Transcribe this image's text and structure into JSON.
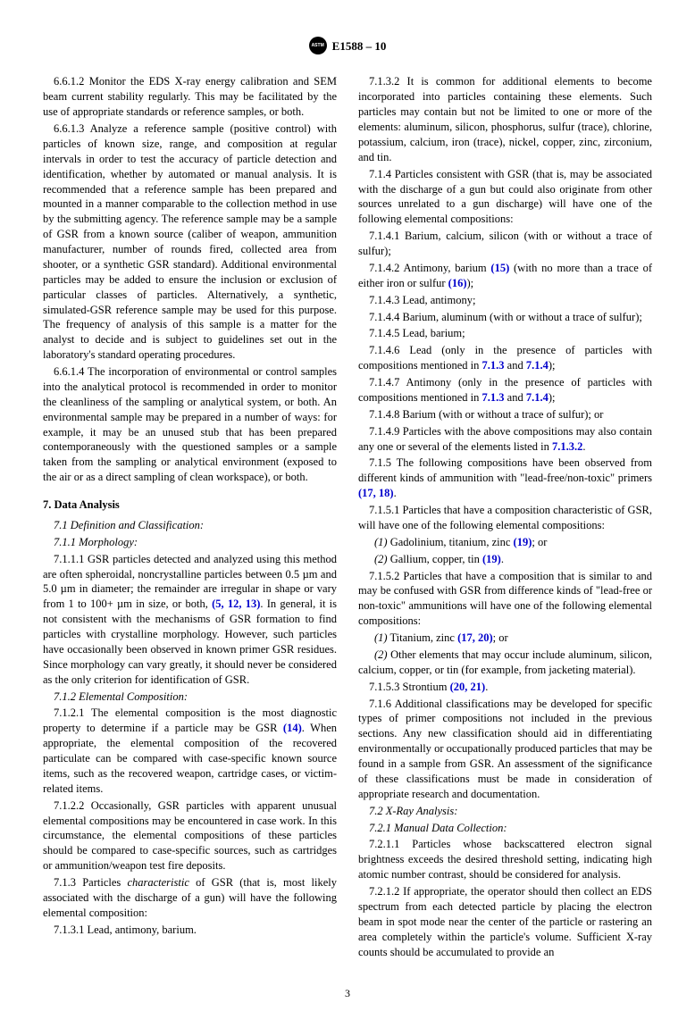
{
  "header": {
    "standard": "E1588 – 10",
    "logoText": "ASTM"
  },
  "pageNumber": "3",
  "col1": {
    "p6_6_1_2": "6.6.1.2 Monitor the EDS X-ray energy calibration and SEM beam current stability regularly. This may be facilitated by the use of appropriate standards or reference samples, or both.",
    "p6_6_1_3": "6.6.1.3 Analyze a reference sample (positive control) with particles of known size, range, and composition at regular intervals in order to test the accuracy of particle detection and identification, whether by automated or manual analysis. It is recommended that a reference sample has been prepared and mounted in a manner comparable to the collection method in use by the submitting agency. The reference sample may be a sample of GSR from a known source (caliber of weapon, ammunition manufacturer, number of rounds fired, collected area from shooter, or a synthetic GSR standard). Additional environmental particles may be added to ensure the inclusion or exclusion of particular classes of particles. Alternatively, a synthetic, simulated-GSR reference sample may be used for this purpose. The frequency of analysis of this sample is a matter for the analyst to decide and is subject to guidelines set out in the laboratory's standard operating procedures.",
    "p6_6_1_4": "6.6.1.4 The incorporation of environmental or control samples into the analytical protocol is recommended in order to monitor the cleanliness of the sampling or analytical system, or both. An environmental sample may be prepared in a number of ways: for example, it may be an unused stub that has been prepared contemporaneously with the questioned samples or a sample taken from the sampling or analytical environment (exposed to the air or as a direct sampling of clean workspace), or both.",
    "s7_title": "7. Data Analysis",
    "s7_1": "7.1 Definition and Classification:",
    "s7_1_1": "7.1.1 Morphology:",
    "p7_1_1_1a": "7.1.1.1 GSR particles detected and analyzed using this method are often spheroidal, noncrystalline particles between 0.5 µm and 5.0 µm in diameter; the remainder are irregular in shape or vary from 1 to 100+ µm in size, or both, ",
    "ref5_12_13": "(5, 12, 13)",
    "p7_1_1_1b": ". In general, it is not consistent with the mechanisms of GSR formation to find particles with crystalline morphology. However, such particles have occasionally been observed in known primer GSR residues. Since morphology can vary greatly, it should never be considered as the only criterion for identification of GSR.",
    "s7_1_2": "7.1.2 Elemental Composition:",
    "p7_1_2_1a": "7.1.2.1 The elemental composition is the most diagnostic property to determine if a particle may be GSR ",
    "ref14": "(14)",
    "p7_1_2_1b": ". When appropriate, the elemental composition of the recovered particulate can be compared with case-specific known source items, such as the recovered weapon, cartridge cases, or victim-related items.",
    "p7_1_2_2": "7.1.2.2 Occasionally, GSR particles with apparent unusual elemental compositions may be encountered in case work. In this circumstance, the elemental compositions of these particles should be compared to case-specific sources, such as cartridges or ammunition/weapon test fire deposits.",
    "p7_1_3": "7.1.3 Particles characteristic of GSR (that is, most likely associated with the discharge of a gun) will have the following elemental composition:",
    "p7_1_3_1": "7.1.3.1 Lead, antimony, barium."
  },
  "col2": {
    "p7_1_3_2": "7.1.3.2 It is common for additional elements to become incorporated into particles containing these elements. Such particles may contain but not be limited to one or more of the elements: aluminum, silicon, phosphorus, sulfur (trace), chlorine, potassium, calcium, iron (trace), nickel, copper, zinc, zirconium, and tin.",
    "p7_1_4": "7.1.4 Particles consistent with GSR (that is, may be associated with the discharge of a gun but could also originate from other sources unrelated to a gun discharge) will have one of the following elemental compositions:",
    "p7_1_4_1": "7.1.4.1 Barium, calcium, silicon (with or without a trace of sulfur);",
    "p7_1_4_2a": "7.1.4.2 Antimony, barium ",
    "ref15": "(15)",
    "p7_1_4_2b": " (with no more than a trace of either iron or sulfur ",
    "ref16": "(16)",
    "p7_1_4_2c": ");",
    "p7_1_4_3": "7.1.4.3 Lead, antimony;",
    "p7_1_4_4": "7.1.4.4 Barium, aluminum (with or without a trace of sulfur);",
    "p7_1_4_5": "7.1.4.5 Lead, barium;",
    "p7_1_4_6a": "7.1.4.6 Lead (only in the presence of particles with compositions mentioned in ",
    "ref7_1_3": "7.1.3",
    "and1": " and ",
    "ref7_1_4": "7.1.4",
    "p7_1_4_6b": ");",
    "p7_1_4_7a": "7.1.4.7 Antimony (only in the presence of particles with compositions mentioned in ",
    "p7_1_4_7b": ");",
    "p7_1_4_8": "7.1.4.8 Barium (with or without a trace of sulfur); or",
    "p7_1_4_9a": "7.1.4.9 Particles with the above compositions may also contain any one or several of the elements listed in ",
    "ref7_1_3_2": "7.1.3.2",
    "dot": ".",
    "p7_1_5a": "7.1.5 The following compositions have been observed from different kinds of ammunition with \"lead-free/non-toxic\" primers ",
    "ref17_18": "(17, 18)",
    "p7_1_5_1": "7.1.5.1 Particles that have a composition characteristic of GSR, will have one of the following elemental compositions:",
    "sub1": "(1)",
    "sub1txt": " Gadolinium, titanium, zinc ",
    "ref19": "(19)",
    "or": "; or",
    "sub2": "(2)",
    "sub2txt": " Gallium, copper, tin ",
    "p7_1_5_2": "7.1.5.2 Particles that have a composition that is similar to and may be confused with GSR from difference kinds of \"lead-free or non-toxic\" ammunitions will have one of the following elemental compositions:",
    "sub1b": " Titanium, zinc ",
    "ref17_20": "(17, 20)",
    "sub2b": " Other elements that may occur include aluminum, silicon, calcium, copper, or tin (for example, from jacketing material).",
    "p7_1_5_3a": "7.1.5.3 Strontium ",
    "ref20_21": "(20, 21)",
    "p7_1_6": "7.1.6 Additional classifications may be developed for specific types of primer compositions not included in the previous sections. Any new classification should aid in differentiating environmentally or occupationally produced particles that may be found in a sample from GSR. An assessment of the significance of these classifications must be made in consideration of appropriate research and documentation.",
    "s7_2": "7.2 X-Ray Analysis:",
    "s7_2_1": "7.2.1 Manual Data Collection:",
    "p7_2_1_1": "7.2.1.1 Particles whose backscattered electron signal brightness exceeds the desired threshold setting, indicating high atomic number contrast, should be considered for analysis.",
    "p7_2_1_2": "7.2.1.2 If appropriate, the operator should then collect an EDS spectrum from each detected particle by placing the electron beam in spot mode near the center of the particle or rastering an area completely within the particle's volume. Sufficient X-ray counts should be accumulated to provide an"
  }
}
